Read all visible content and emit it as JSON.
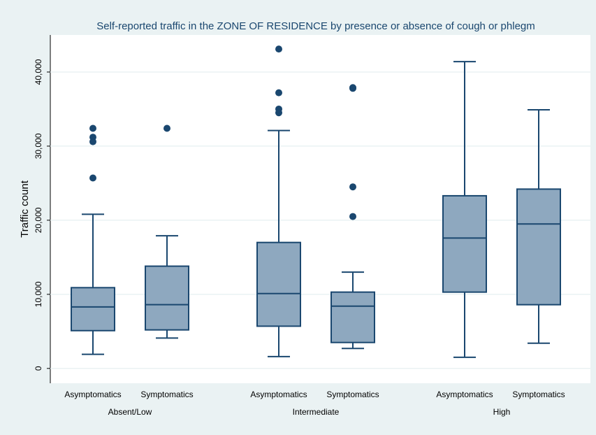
{
  "chart_data": {
    "type": "box",
    "title": "Self-reported traffic in the ZONE OF RESIDENCE by presence or absence of cough or phlegm",
    "ylabel": "Traffic count",
    "ylim": [
      -2000,
      45000
    ],
    "yticks": [
      0,
      {
        "value": 10000,
        "label": "10,000"
      },
      {
        "value": 20000,
        "label": "20,000"
      },
      {
        "value": 30000,
        "label": "30,000"
      },
      {
        "value": 40000,
        "label": "40,000"
      }
    ],
    "grid": true,
    "color": "#8ea8bf",
    "edge_color": "#1a476f",
    "groups": [
      {
        "name": "Absent/Low",
        "boxes": [
          {
            "label": "Asymptomatics",
            "min": 1900,
            "q1": 5100,
            "median": 8300,
            "q3": 10900,
            "max": 20800,
            "outliers": [
              32400,
              31200,
              30600,
              25700
            ]
          },
          {
            "label": "Symptomatics",
            "min": 4100,
            "q1": 5200,
            "median": 8600,
            "q3": 13800,
            "max": 17900,
            "outliers": [
              32400
            ]
          }
        ]
      },
      {
        "name": "Intermediate",
        "boxes": [
          {
            "label": "Asymptomatics",
            "min": 1600,
            "q1": 5700,
            "median": 10100,
            "q3": 17000,
            "max": 32100,
            "outliers": [
              43100,
              37200,
              35000,
              34500
            ]
          },
          {
            "label": "Symptomatics",
            "min": 2700,
            "q1": 3500,
            "median": 8400,
            "q3": 10300,
            "max": 13000,
            "outliers": [
              37900,
              37800,
              24500,
              20500
            ]
          }
        ]
      },
      {
        "name": "High",
        "boxes": [
          {
            "label": "Asymptomatics",
            "min": 1500,
            "q1": 10300,
            "median": 17600,
            "q3": 23300,
            "max": 41400,
            "outliers": []
          },
          {
            "label": "Symptomatics",
            "min": 3400,
            "q1": 8600,
            "median": 19500,
            "q3": 24200,
            "max": 34900,
            "outliers": []
          }
        ]
      }
    ]
  }
}
